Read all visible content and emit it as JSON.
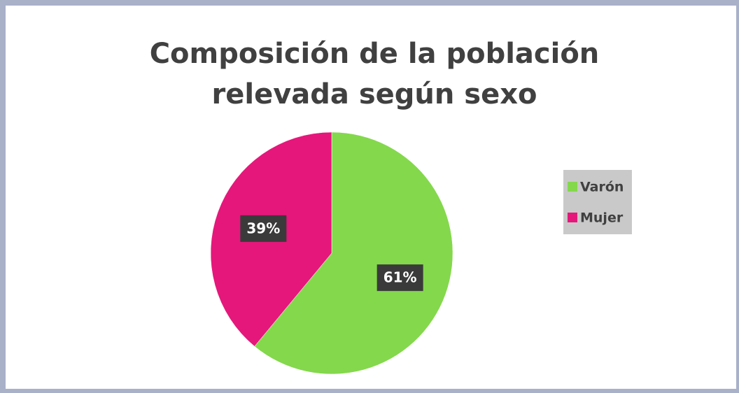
{
  "chart_data": {
    "type": "pie",
    "title": "Composición de la población relevada según sexo",
    "categories": [
      "Varón",
      "Mujer"
    ],
    "values": [
      61,
      39
    ],
    "value_labels": [
      "61%",
      "39%"
    ],
    "colors": [
      "#84d84c",
      "#e5177b"
    ],
    "legend": "right"
  }
}
